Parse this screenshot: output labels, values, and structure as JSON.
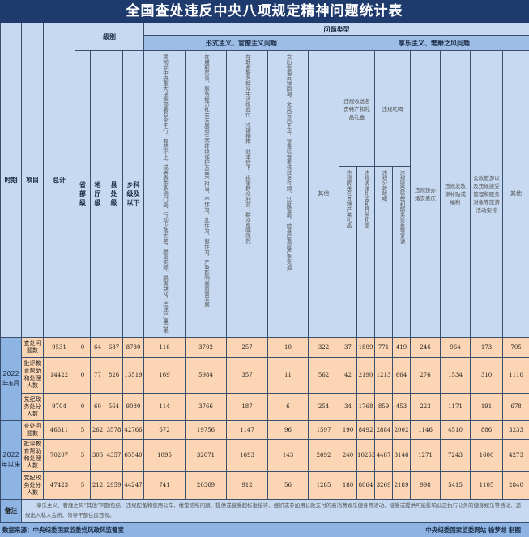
{
  "title": "全国查处违反中央八项规定精神问题统计表",
  "headers": {
    "period": "时期",
    "item": "项目",
    "total": "总计",
    "level": "级别",
    "levels": [
      "省部级",
      "地厅级",
      "县处级",
      "乡科级及以下"
    ],
    "problem_type": "问题类型",
    "formalism": "形式主义、官僚主义问题",
    "formalism_cols": [
      "贯彻党中央重大决策部署有令不行、有禁不止，或者表态多调门高、行动少落实差，脱离实际、脱离群众，造成严重后果",
      "在履职尽责、服务经济社会发展和生态环境保护方面不担当、不作为、乱作为、假作为，严重影响高质量发展",
      "在联系服务群众中消极应付、冷硬横推、效率低下，损害群众利益，群众反映强烈",
      "文山会海反弹回潮，文风会风不正，督查检查考核过多过频、过度留痕，给基层造成严重负担",
      "其他"
    ],
    "hedonism": "享乐主义、奢靡之风问题",
    "gifts": "违规收送名贵特产和礼品礼金",
    "gifts_cols": [
      "违规收送名贵特产类礼品",
      "违规收送礼金和其他礼品"
    ],
    "dining": "违规吃喝",
    "dining_cols": [
      "违规公款吃喝",
      "违规接受管理和服务对象等宴请"
    ],
    "hedonism_cols": [
      "违规操办婚丧喜庆",
      "违规发放津补贴或福利",
      "公款旅游以及违规接受管理和服务对象等旅游活动安排",
      "其他"
    ]
  },
  "groups": [
    {
      "period": "2022年6月",
      "rows": [
        {
          "item": "查处问题数",
          "values": [
            9531,
            0,
            64,
            687,
            8780,
            116,
            3702,
            257,
            10,
            322,
            37,
            1809,
            771,
            419,
            246,
            964,
            173,
            705
          ]
        },
        {
          "item": "批评教育帮助和处理人数",
          "values": [
            14422,
            0,
            77,
            826,
            13519,
            169,
            5984,
            357,
            11,
            562,
            42,
            2190,
            1213,
            664,
            276,
            1534,
            310,
            1110
          ]
        },
        {
          "item": "党纪政务处分人数",
          "values": [
            9704,
            0,
            60,
            564,
            9080,
            114,
            3766,
            187,
            6,
            254,
            34,
            1768,
            859,
            453,
            223,
            1171,
            191,
            678
          ]
        }
      ]
    },
    {
      "period": "2022年以来",
      "rows": [
        {
          "item": "查处问题数",
          "values": [
            46611,
            5,
            262,
            3578,
            42766,
            672,
            19756,
            1147,
            96,
            1597,
            190,
            8492,
            2884,
            2002,
            1146,
            4510,
            886,
            3233
          ]
        },
        {
          "item": "批评教育帮助和处理人数",
          "values": [
            70207,
            5,
            305,
            4357,
            65540,
            1095,
            32071,
            1693,
            143,
            2692,
            240,
            10253,
            4487,
            3146,
            1271,
            7243,
            1600,
            4273
          ]
        },
        {
          "item": "党纪政务处分人数",
          "values": [
            47423,
            5,
            212,
            2959,
            44247,
            741,
            20369,
            912,
            56,
            1285,
            180,
            8064,
            3269,
            2189,
            998,
            5415,
            1105,
            2840
          ]
        }
      ]
    }
  ],
  "note": {
    "label": "备注",
    "text": "享乐主义、奢靡之风“其他”问题包括：违规配备和使用公车、楼堂馆所问题、提供或接受超标准接待、组织或参加用公款支付的高消费娱乐健身等活动、接受或提供可能影响公正执行公务的健身娱乐等活动、违规出入私人会所、领导干部住房违规。"
  },
  "footer": {
    "source": "数据来源：中央纪委国家监委党风政风监督室",
    "credit": "中央纪委国家监委网站 徐梦龙 制图"
  },
  "colors": {
    "title_bg": "#1f3b6e",
    "header_bg": "#c6d9f1",
    "cell_bg": "#fcd6b4",
    "side_bg": "#8eb4e3"
  }
}
